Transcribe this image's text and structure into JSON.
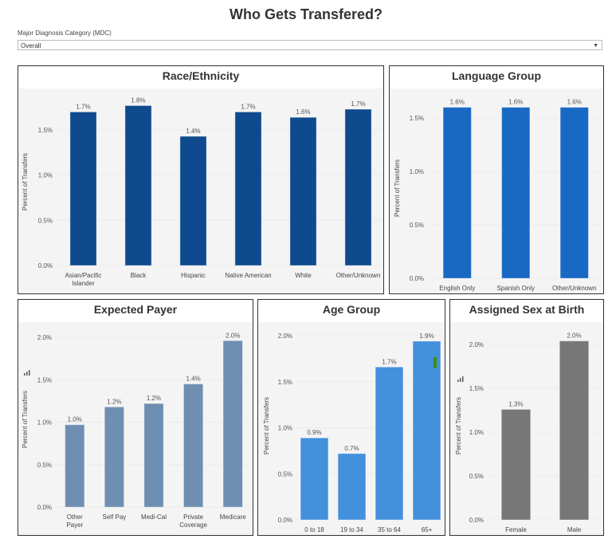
{
  "header": {
    "title": "Who Gets Transfered?"
  },
  "filter": {
    "label": "Major Diagnosis Category (MDC)",
    "value": "Overall"
  },
  "chart_data": [
    {
      "id": "race",
      "type": "bar",
      "title": "Race/Ethnicity",
      "ylabel": "Percent of Transfers",
      "categories": [
        "Asian/Pacific\nIslander",
        "Black",
        "Hispanic",
        "Native American",
        "White",
        "Other/Unknown"
      ],
      "values": [
        1.7,
        1.77,
        1.43,
        1.7,
        1.64,
        1.73
      ],
      "data_labels": [
        "1.7%",
        "1.8%",
        "1.4%",
        "1.7%",
        "1.6%",
        "1.7%"
      ],
      "yticks": [
        0,
        0.5,
        1.0,
        1.5
      ],
      "ytick_labels": [
        "0.0%",
        "0.5%",
        "1.0%",
        "1.5%"
      ],
      "color": "#0f4a8e",
      "grid": true
    },
    {
      "id": "language",
      "type": "bar",
      "title": "Language Group",
      "ylabel": "Percent of Transfers",
      "categories": [
        "English Only",
        "Spanish Only",
        "Other/Unknown"
      ],
      "values": [
        1.6,
        1.6,
        1.6
      ],
      "data_labels": [
        "1.6%",
        "1.6%",
        "1.6%"
      ],
      "yticks": [
        0,
        0.5,
        1.0,
        1.5
      ],
      "ytick_labels": [
        "0.0%",
        "0.5%",
        "1.0%",
        "1.5%"
      ],
      "color": "#1868c4",
      "grid": true
    },
    {
      "id": "payer",
      "type": "bar",
      "title": "Expected Payer",
      "ylabel": "Percent of Transfers",
      "categories": [
        "Other\nPayer",
        "Self Pay",
        "Medi-Cal",
        "Private\nCoverage",
        "Medicare"
      ],
      "values": [
        0.97,
        1.18,
        1.22,
        1.45,
        1.96
      ],
      "data_labels": [
        "1.0%",
        "1.2%",
        "1.2%",
        "1.4%",
        "2.0%"
      ],
      "yticks": [
        0,
        0.5,
        1.0,
        1.5,
        2.0
      ],
      "ytick_labels": [
        "0.0%",
        "0.5%",
        "1.0%",
        "1.5%",
        "2.0%"
      ],
      "color": "#6e8fb1",
      "grid": true,
      "icon": "bar-chart-icon"
    },
    {
      "id": "age",
      "type": "bar",
      "title": "Age Group",
      "ylabel": "Percent of Transfers",
      "categories": [
        "0 to 18",
        "19 to 34",
        "35 to 64",
        "65+"
      ],
      "values": [
        0.89,
        0.72,
        1.66,
        1.94
      ],
      "data_labels": [
        "0.9%",
        "0.7%",
        "1.7%",
        "1.9%"
      ],
      "yticks": [
        0,
        0.5,
        1.0,
        1.5,
        2.0
      ],
      "ytick_labels": [
        "0.0%",
        "0.5%",
        "1.0%",
        "1.5%",
        "2.0%"
      ],
      "color": "#4390dd",
      "marker_color": "#3d8c12",
      "grid": true
    },
    {
      "id": "sex",
      "type": "bar",
      "title": "Assigned Sex at Birth",
      "ylabel": "Percent of Transfers",
      "categories": [
        "Female",
        "Male"
      ],
      "values": [
        1.26,
        2.04
      ],
      "data_labels": [
        "1.3%",
        "2.0%"
      ],
      "yticks": [
        0,
        0.5,
        1.0,
        1.5,
        2.0
      ],
      "ytick_labels": [
        "0.0%",
        "0.5%",
        "1.0%",
        "1.5%",
        "2.0%"
      ],
      "color": "#777777",
      "grid": true,
      "icon": "bar-chart-icon"
    }
  ]
}
